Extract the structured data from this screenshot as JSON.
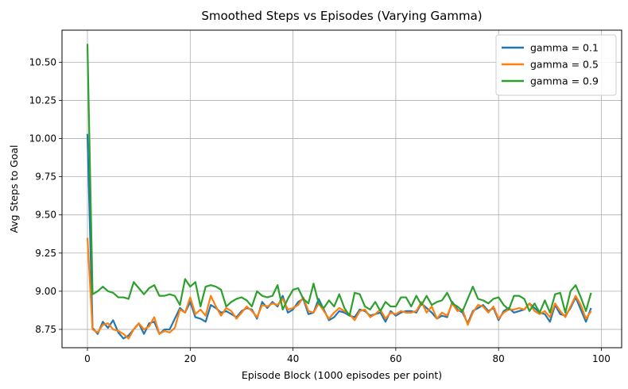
{
  "chart_data": {
    "type": "line",
    "title": "Smoothed Steps vs Episodes (Varying Gamma)",
    "xlabel": "Episode Block (1000 episodes per point)",
    "ylabel": "Avg Steps to Goal",
    "xlim": [
      -4.95,
      103.95
    ],
    "ylim": [
      8.63,
      10.71
    ],
    "xticks": [
      0,
      20,
      40,
      60,
      80,
      100
    ],
    "xtick_labels": [
      "0",
      "20",
      "40",
      "60",
      "80",
      "100"
    ],
    "yticks": [
      8.75,
      9.0,
      9.25,
      9.5,
      9.75,
      10.0,
      10.25,
      10.5
    ],
    "ytick_labels": [
      "8.75",
      "9.00",
      "9.25",
      "9.50",
      "9.75",
      "10.00",
      "10.25",
      "10.50"
    ],
    "grid": true,
    "legend_position": "top-right",
    "series": [
      {
        "name": "gamma = 0.1",
        "color": "#1f77b4",
        "values": [
          10.03,
          8.76,
          8.72,
          8.8,
          8.76,
          8.81,
          8.73,
          8.69,
          8.71,
          8.75,
          8.79,
          8.72,
          8.79,
          8.8,
          8.72,
          8.75,
          8.75,
          8.82,
          8.89,
          8.86,
          8.93,
          8.83,
          8.82,
          8.8,
          8.91,
          8.89,
          8.86,
          8.87,
          8.85,
          8.83,
          8.87,
          8.89,
          8.88,
          8.82,
          8.93,
          8.89,
          8.93,
          8.9,
          8.97,
          8.86,
          8.88,
          8.93,
          8.95,
          8.85,
          8.86,
          8.95,
          8.88,
          8.81,
          8.83,
          8.87,
          8.86,
          8.84,
          8.83,
          8.88,
          8.87,
          8.84,
          8.85,
          8.86,
          8.8,
          8.87,
          8.84,
          8.86,
          8.87,
          8.87,
          8.86,
          8.92,
          8.89,
          8.86,
          8.82,
          8.84,
          8.83,
          8.93,
          8.88,
          8.86,
          8.79,
          8.87,
          8.89,
          8.91,
          8.87,
          8.89,
          8.81,
          8.87,
          8.89,
          8.86,
          8.87,
          8.88,
          8.92,
          8.89,
          8.86,
          8.85,
          8.8,
          8.91,
          8.85,
          8.84,
          8.89,
          8.96,
          8.88,
          8.8,
          8.89
        ]
      },
      {
        "name": "gamma = 0.5",
        "color": "#ff7f0e",
        "values": [
          9.35,
          8.75,
          8.73,
          8.78,
          8.79,
          8.75,
          8.74,
          8.72,
          8.69,
          8.75,
          8.79,
          8.75,
          8.77,
          8.83,
          8.72,
          8.74,
          8.73,
          8.76,
          8.88,
          8.86,
          8.96,
          8.85,
          8.88,
          8.84,
          8.97,
          8.9,
          8.84,
          8.89,
          8.87,
          8.82,
          8.86,
          8.9,
          8.87,
          8.83,
          8.91,
          8.9,
          8.92,
          8.91,
          8.95,
          8.88,
          8.89,
          8.91,
          8.96,
          8.87,
          8.86,
          8.92,
          8.87,
          8.82,
          8.86,
          8.89,
          8.87,
          8.85,
          8.81,
          8.87,
          8.88,
          8.83,
          8.85,
          8.88,
          8.82,
          8.86,
          8.85,
          8.87,
          8.86,
          8.86,
          8.87,
          8.93,
          8.86,
          8.9,
          8.82,
          8.86,
          8.84,
          8.92,
          8.87,
          8.88,
          8.78,
          8.86,
          8.91,
          8.9,
          8.86,
          8.9,
          8.82,
          8.86,
          8.88,
          8.88,
          8.89,
          8.88,
          8.92,
          8.87,
          8.85,
          8.87,
          8.83,
          8.92,
          8.87,
          8.83,
          8.9,
          8.97,
          8.91,
          8.82,
          8.87
        ]
      },
      {
        "name": "gamma = 0.9",
        "color": "#2ca02c",
        "values": [
          10.62,
          8.98,
          9.0,
          9.03,
          9.0,
          8.99,
          8.96,
          8.96,
          8.95,
          9.06,
          9.02,
          8.98,
          9.02,
          9.04,
          8.97,
          8.97,
          8.98,
          8.97,
          8.91,
          9.08,
          9.03,
          9.06,
          8.9,
          9.03,
          9.04,
          9.03,
          9.01,
          8.9,
          8.93,
          8.95,
          8.96,
          8.94,
          8.9,
          9.0,
          8.97,
          8.96,
          8.97,
          9.04,
          8.88,
          8.95,
          9.01,
          9.02,
          8.95,
          8.92,
          9.05,
          8.92,
          8.89,
          8.94,
          8.9,
          8.98,
          8.89,
          8.84,
          8.99,
          8.98,
          8.9,
          8.88,
          8.93,
          8.87,
          8.93,
          8.9,
          8.9,
          8.96,
          8.96,
          8.9,
          8.97,
          8.91,
          8.97,
          8.91,
          8.93,
          8.94,
          8.99,
          8.92,
          8.9,
          8.87,
          8.95,
          9.03,
          8.95,
          8.94,
          8.92,
          8.95,
          8.96,
          8.91,
          8.88,
          8.97,
          8.97,
          8.95,
          8.87,
          8.92,
          8.86,
          8.94,
          8.86,
          8.98,
          8.99,
          8.86,
          9.0,
          9.04,
          8.96,
          8.87,
          8.99
        ]
      }
    ]
  }
}
